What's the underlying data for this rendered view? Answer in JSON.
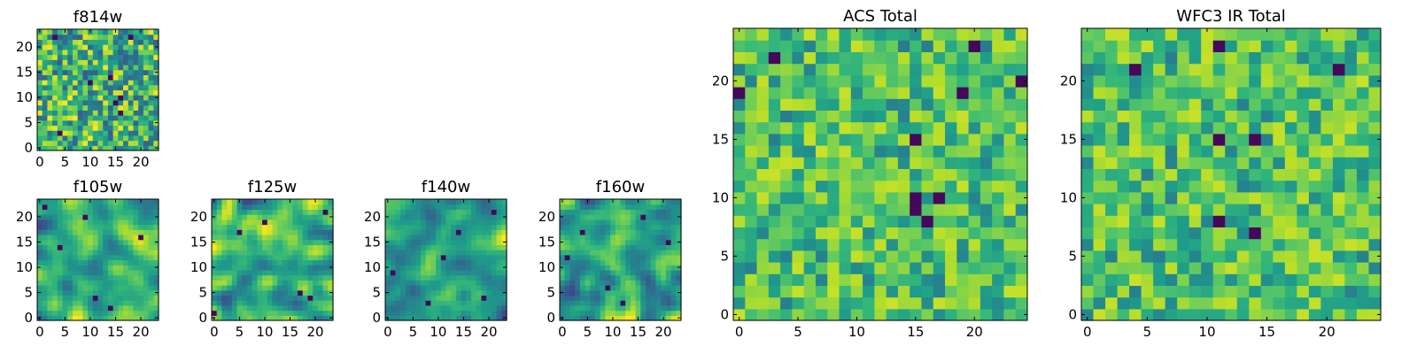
{
  "colormap": "viridis",
  "chart_data": [
    {
      "type": "heatmap",
      "title": "f814w",
      "grid": false,
      "xlim": [
        0,
        24
      ],
      "ylim": [
        0,
        24
      ],
      "xticks": [
        0,
        5,
        10,
        15,
        20
      ],
      "yticks": [
        0,
        5,
        10,
        15,
        20
      ],
      "size": [
        24,
        24
      ],
      "style": "noisy",
      "seed": 11,
      "minima": [
        [
          3,
          22
        ],
        [
          18,
          22
        ],
        [
          14,
          14
        ],
        [
          16,
          10
        ],
        [
          15,
          9
        ],
        [
          16,
          7
        ],
        [
          10,
          13
        ],
        [
          4,
          3
        ]
      ]
    },
    {
      "type": "heatmap",
      "title": "f105w",
      "grid": false,
      "xlim": [
        0,
        24
      ],
      "ylim": [
        0,
        24
      ],
      "xticks": [
        0,
        5,
        10,
        15,
        20
      ],
      "yticks": [
        0,
        5,
        10,
        15,
        20
      ],
      "size": [
        24,
        24
      ],
      "style": "smooth",
      "seed": 23,
      "minima": [
        [
          9,
          20
        ],
        [
          4,
          14
        ],
        [
          20,
          16
        ],
        [
          1,
          22
        ],
        [
          11,
          4
        ],
        [
          14,
          2
        ]
      ]
    },
    {
      "type": "heatmap",
      "title": "f125w",
      "grid": false,
      "xlim": [
        0,
        24
      ],
      "ylim": [
        0,
        24
      ],
      "xticks": [
        0,
        5,
        10,
        15,
        20
      ],
      "yticks": [
        0,
        5,
        10,
        15,
        20
      ],
      "size": [
        24,
        24
      ],
      "style": "smooth",
      "seed": 37,
      "minima": [
        [
          22,
          21
        ],
        [
          17,
          5
        ],
        [
          19,
          4
        ],
        [
          0,
          1
        ],
        [
          5,
          17
        ],
        [
          10,
          19
        ]
      ]
    },
    {
      "type": "heatmap",
      "title": "f140w",
      "grid": false,
      "xlim": [
        0,
        24
      ],
      "ylim": [
        0,
        24
      ],
      "xticks": [
        0,
        5,
        10,
        15,
        20
      ],
      "yticks": [
        0,
        5,
        10,
        15,
        20
      ],
      "size": [
        24,
        24
      ],
      "style": "smooth",
      "seed": 41,
      "minima": [
        [
          21,
          21
        ],
        [
          14,
          17
        ],
        [
          1,
          9
        ],
        [
          8,
          3
        ],
        [
          19,
          4
        ],
        [
          11,
          12
        ]
      ]
    },
    {
      "type": "heatmap",
      "title": "f160w",
      "grid": false,
      "xlim": [
        0,
        24
      ],
      "ylim": [
        0,
        24
      ],
      "xticks": [
        0,
        5,
        10,
        15,
        20
      ],
      "yticks": [
        0,
        5,
        10,
        15,
        20
      ],
      "size": [
        24,
        24
      ],
      "style": "smooth",
      "seed": 53,
      "minima": [
        [
          4,
          17
        ],
        [
          21,
          15
        ],
        [
          1,
          12
        ],
        [
          9,
          6
        ],
        [
          12,
          3
        ],
        [
          16,
          20
        ]
      ]
    },
    {
      "type": "heatmap",
      "title": "ACS Total",
      "grid": false,
      "xlim": [
        0,
        24
      ],
      "ylim": [
        0,
        24
      ],
      "xticks": [
        0,
        5,
        10,
        15,
        20
      ],
      "yticks": [
        0,
        5,
        10,
        15,
        20
      ],
      "size": [
        25,
        25
      ],
      "style": "blocky",
      "seed": 67,
      "minima": [
        [
          3,
          22
        ],
        [
          20,
          23
        ],
        [
          0,
          19
        ],
        [
          19,
          19
        ],
        [
          24,
          20
        ],
        [
          15,
          15
        ],
        [
          15,
          9
        ],
        [
          15,
          10
        ],
        [
          17,
          10
        ],
        [
          16,
          8
        ]
      ]
    },
    {
      "type": "heatmap",
      "title": "WFC3 IR Total",
      "grid": false,
      "xlim": [
        0,
        24
      ],
      "ylim": [
        0,
        24
      ],
      "xticks": [
        0,
        5,
        10,
        15,
        20
      ],
      "yticks": [
        0,
        5,
        10,
        15,
        20
      ],
      "size": [
        25,
        25
      ],
      "style": "blocky",
      "seed": 79,
      "minima": [
        [
          11,
          23
        ],
        [
          4,
          21
        ],
        [
          21,
          21
        ],
        [
          11,
          15
        ],
        [
          14,
          15
        ],
        [
          11,
          8
        ],
        [
          14,
          7
        ]
      ]
    }
  ]
}
